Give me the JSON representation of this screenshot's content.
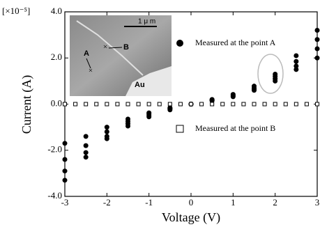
{
  "chart_data": {
    "type": "scatter",
    "xlabel": "Voltage (V)",
    "ylabel": "Current (A)",
    "y_multiplier": "[×10⁻⁵]",
    "xlim": [
      -3,
      3
    ],
    "ylim": [
      -4,
      4
    ],
    "xticks": [
      -3,
      -2,
      -1,
      0,
      1,
      2,
      3
    ],
    "yticks": [
      {
        "value": 4,
        "label": "4.0"
      },
      {
        "value": 2,
        "label": "2.0"
      },
      {
        "value": 0,
        "label": "0.0"
      },
      {
        "value": -2,
        "label": "-2.0"
      },
      {
        "value": -4,
        "label": "-4.0"
      }
    ],
    "inset": {
      "scale_bar": "1 μ m",
      "labels": [
        "A",
        "B",
        "Au"
      ]
    },
    "series": [
      {
        "name": "Measured at the point A",
        "color": "#000000",
        "marker": "filled-circle",
        "x": [
          -3,
          -2.5,
          -2,
          -1.5,
          -1,
          -0.5,
          0,
          0.5,
          1,
          1.5,
          2,
          2.5,
          3,
          -3,
          -2.5,
          -2,
          -1.5,
          -1,
          -0.5,
          0,
          0.5,
          1,
          1.5,
          2,
          2.5,
          3,
          -3,
          -2.5,
          -2,
          -1.5,
          -1,
          -0.5,
          0,
          0.5,
          1,
          1.5,
          2,
          2.5,
          3,
          -3,
          -2.5,
          -2,
          -1.5,
          -1,
          -0.5,
          0,
          0.5,
          1,
          1.5,
          2,
          2.5,
          3
        ],
        "values": [
          -3.3,
          -2.3,
          -1.5,
          -0.95,
          -0.55,
          -0.25,
          0,
          0.2,
          0.42,
          0.78,
          1.3,
          2.1,
          3.2,
          -2.9,
          -2.1,
          -1.4,
          -0.85,
          -0.48,
          -0.2,
          0,
          0.18,
          0.38,
          0.7,
          1.2,
          1.85,
          2.8,
          -2.4,
          -1.8,
          -1.2,
          -0.75,
          -0.42,
          -0.18,
          0,
          0.16,
          0.35,
          0.65,
          1.1,
          1.65,
          2.4,
          -1.7,
          -1.4,
          -1.0,
          -0.65,
          -0.38,
          -0.16,
          0,
          0.15,
          0.32,
          0.6,
          1.0,
          1.5,
          2.0
        ]
      },
      {
        "name": "Measured at the point B",
        "color": "#000000",
        "marker": "open-square",
        "x": [
          -3,
          -2.75,
          -2.5,
          -2.25,
          -2,
          -1.75,
          -1.5,
          -1.25,
          -1,
          -0.75,
          -0.5,
          -0.25,
          0,
          0.25,
          0.5,
          0.75,
          1,
          1.25,
          1.5,
          1.75,
          2,
          2.25,
          2.5,
          2.75,
          3
        ],
        "values": [
          0,
          0,
          0,
          0,
          0,
          0,
          0,
          0,
          0,
          0,
          0,
          0,
          0,
          0,
          0,
          0,
          0,
          0,
          0,
          0,
          0,
          0,
          0,
          0,
          0
        ]
      }
    ]
  }
}
